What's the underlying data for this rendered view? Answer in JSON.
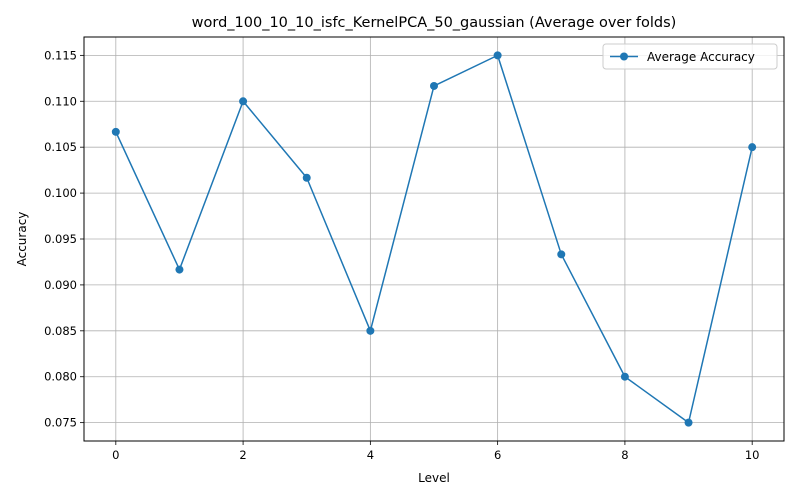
{
  "chart_data": {
    "type": "line",
    "title": "word_100_10_10_isfc_KernelPCA_50_gaussian (Average over folds)",
    "xlabel": "Level",
    "ylabel": "Accuracy",
    "x": [
      0,
      1,
      2,
      3,
      4,
      5,
      6,
      7,
      8,
      9,
      10
    ],
    "series": [
      {
        "name": "Average Accuracy",
        "color": "#1f77b4",
        "marker": "circle",
        "values": [
          0.10667,
          0.09167,
          0.11,
          0.10167,
          0.085,
          0.11167,
          0.115,
          0.09333,
          0.08,
          0.075,
          0.105
        ]
      }
    ],
    "xlim": [
      -0.5,
      10.5
    ],
    "ylim": [
      0.073,
      0.117
    ],
    "xticks": [
      0,
      2,
      4,
      6,
      8,
      10
    ],
    "xtick_labels": [
      "0",
      "2",
      "4",
      "6",
      "8",
      "10"
    ],
    "yticks": [
      0.075,
      0.08,
      0.085,
      0.09,
      0.095,
      0.1,
      0.105,
      0.11,
      0.115
    ],
    "ytick_labels": [
      "0.075",
      "0.080",
      "0.085",
      "0.090",
      "0.095",
      "0.100",
      "0.105",
      "0.110",
      "0.115"
    ],
    "grid": true,
    "legend_position": "top-right"
  }
}
